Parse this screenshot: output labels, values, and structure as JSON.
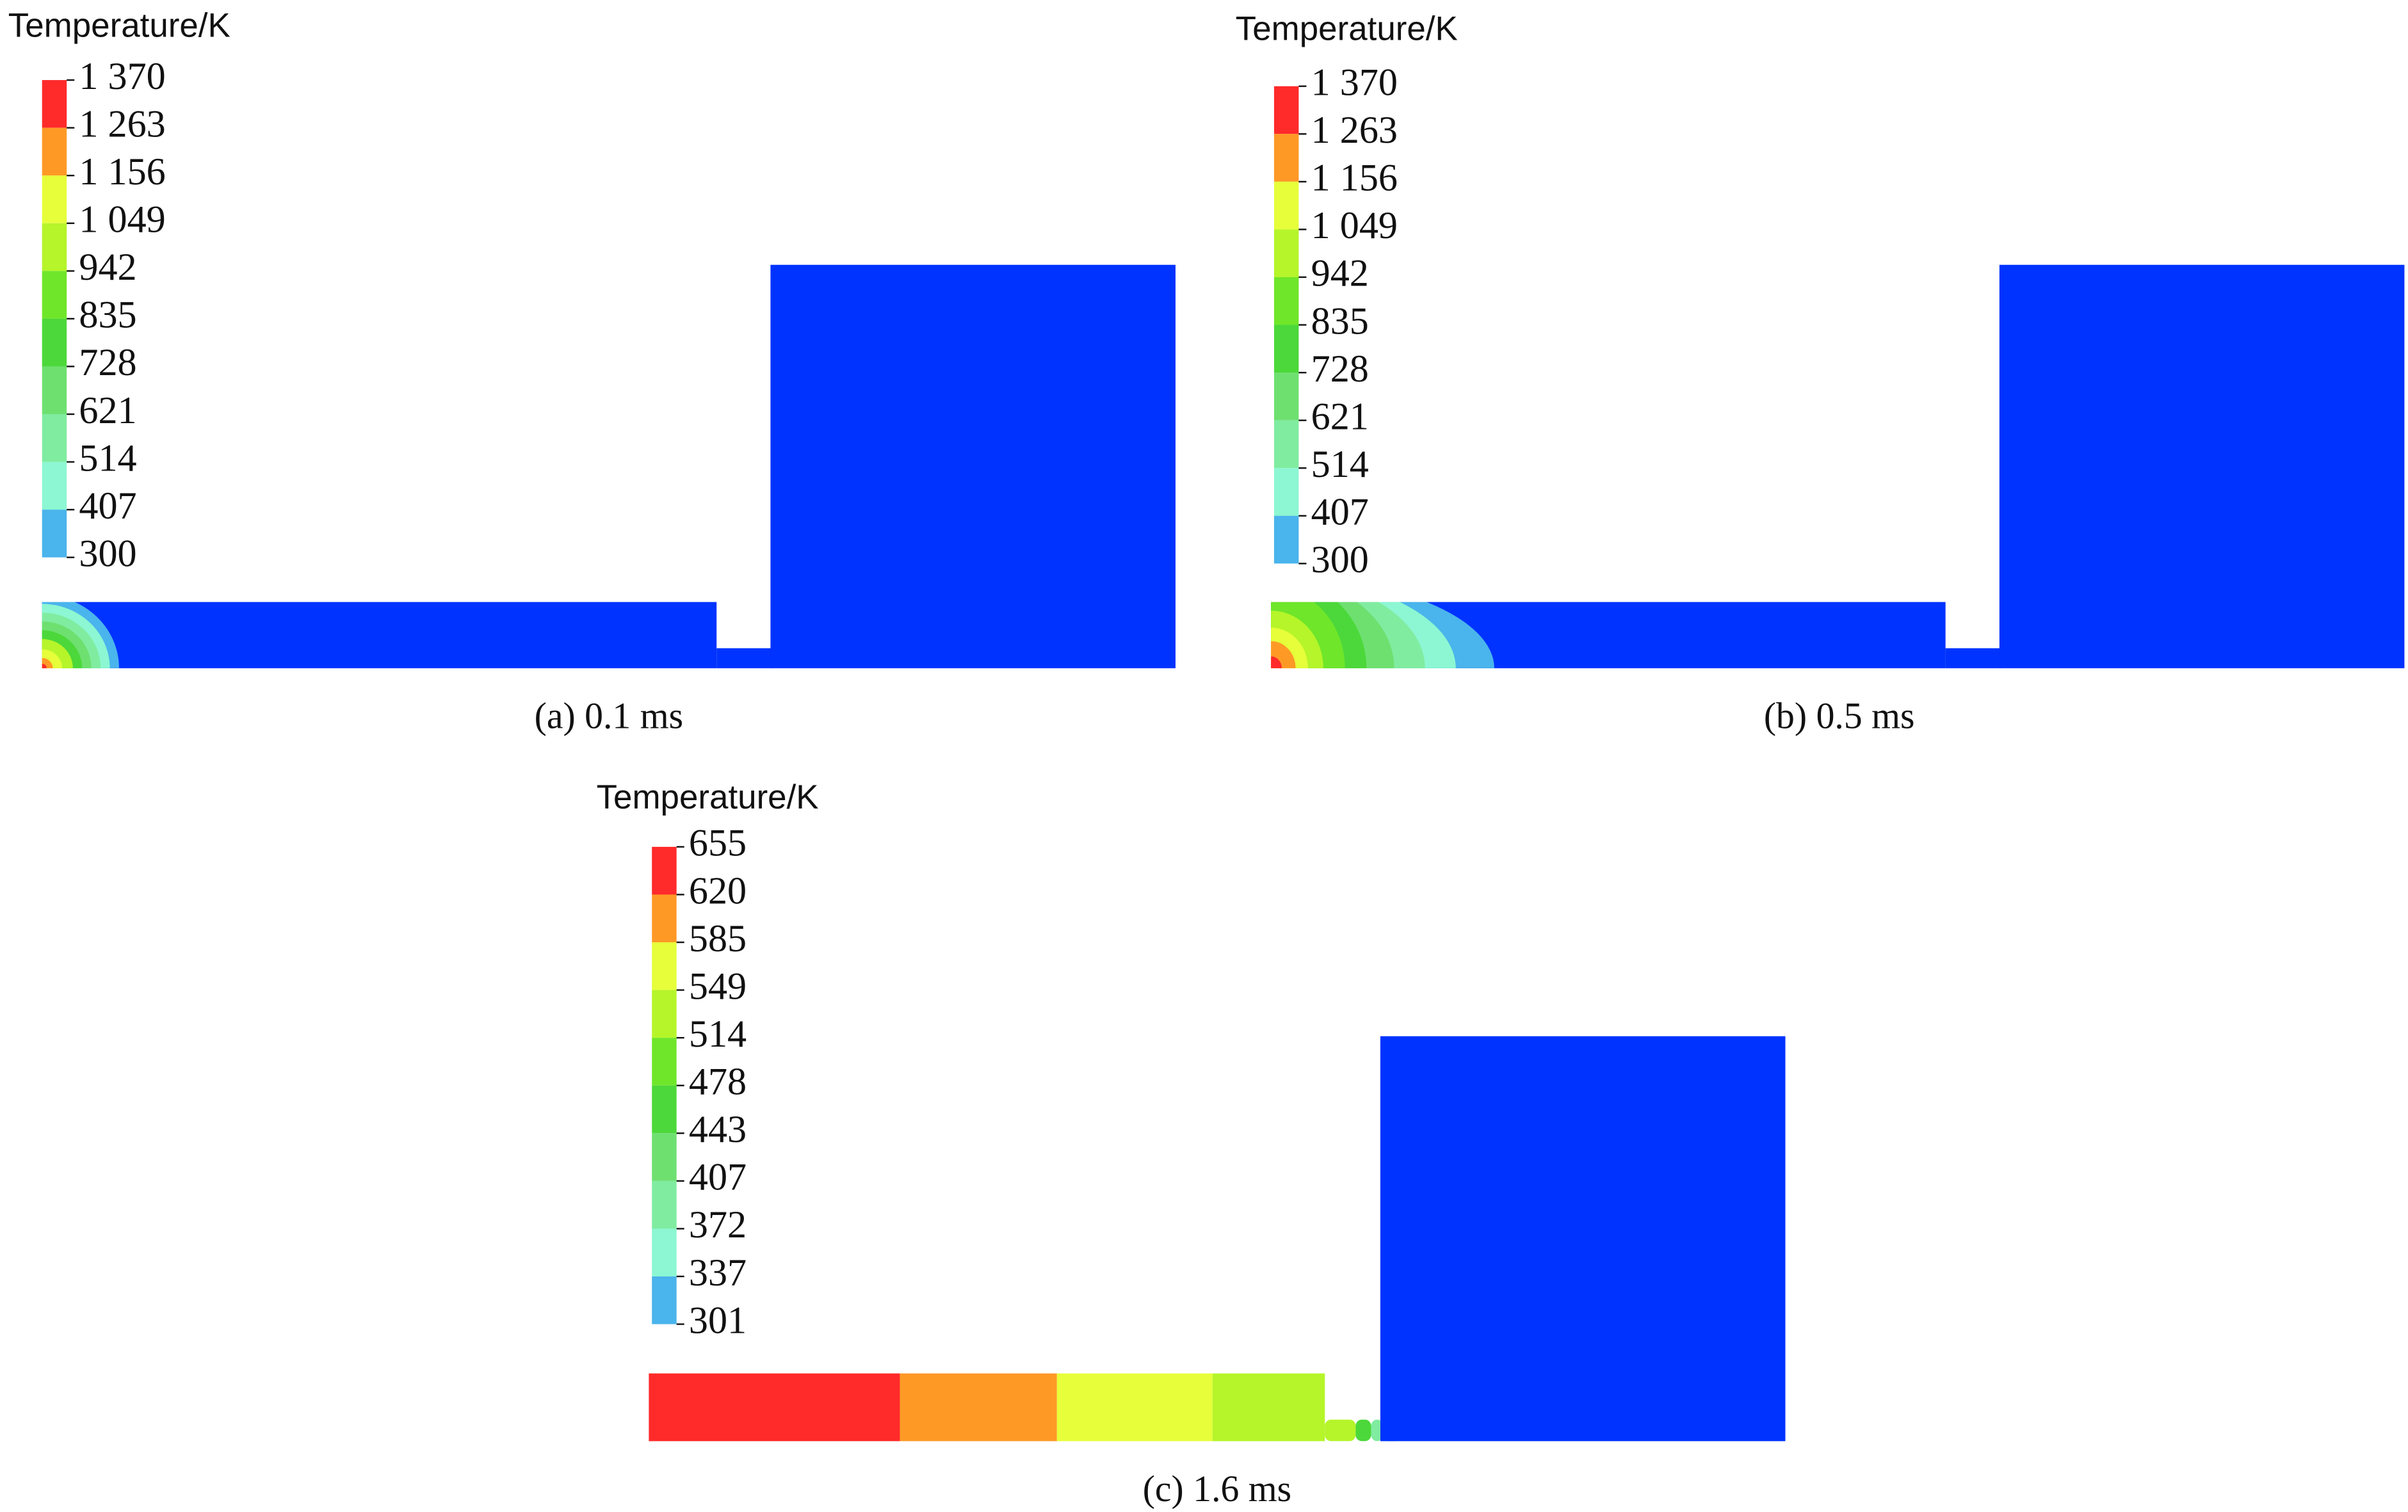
{
  "panels": [
    {
      "legend_title": "Temperature/K",
      "legend_labels": [
        "1 370",
        "1 263",
        "1 156",
        "1 049",
        "942",
        "835",
        "728",
        "621",
        "514",
        "407",
        "300"
      ],
      "caption": "(a) 0.1 ms"
    },
    {
      "legend_title": "Temperature/K",
      "legend_labels": [
        "1 370",
        "1 263",
        "1 156",
        "1 049",
        "942",
        "835",
        "728",
        "621",
        "514",
        "407",
        "300"
      ],
      "caption": "(b) 0.5 ms"
    },
    {
      "legend_title": "Temperature/K",
      "legend_labels": [
        "655",
        "620",
        "585",
        "549",
        "514",
        "478",
        "443",
        "407",
        "372",
        "337",
        "301"
      ],
      "caption": "(c) 1.6 ms"
    }
  ]
}
